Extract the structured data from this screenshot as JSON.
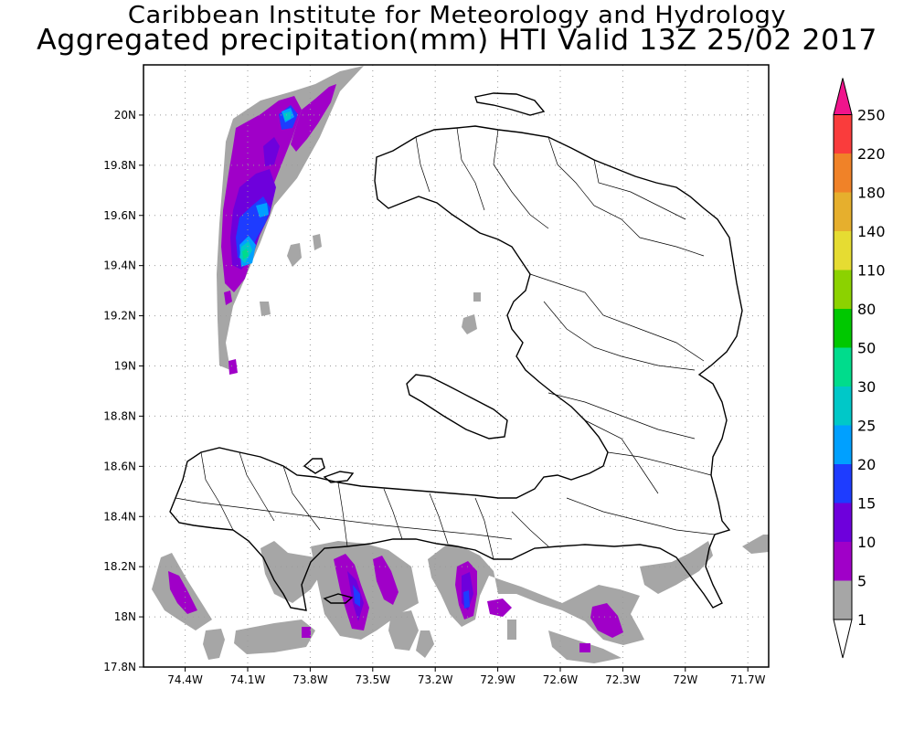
{
  "header": {
    "institute": "Caribbean Institute for Meteorology and Hydrology",
    "product": "Aggregated precipitation(mm) HTI Valid 13Z 25/02 2017"
  },
  "map": {
    "lon_range": [
      -74.6,
      -71.6
    ],
    "lat_range": [
      17.8,
      20.2
    ],
    "gridlines": "dotted",
    "x_ticks": [
      {
        "value": -74.4,
        "label": "74.4W"
      },
      {
        "value": -74.1,
        "label": "74.1W"
      },
      {
        "value": -73.8,
        "label": "73.8W"
      },
      {
        "value": -73.5,
        "label": "73.5W"
      },
      {
        "value": -73.2,
        "label": "73.2W"
      },
      {
        "value": -72.9,
        "label": "72.9W"
      },
      {
        "value": -72.6,
        "label": "72.6W"
      },
      {
        "value": -72.3,
        "label": "72.3W"
      },
      {
        "value": -72.0,
        "label": "72W"
      },
      {
        "value": -71.7,
        "label": "71.7W"
      }
    ],
    "y_ticks": [
      {
        "value": 17.8,
        "label": "17.8N"
      },
      {
        "value": 18.0,
        "label": "18N"
      },
      {
        "value": 18.2,
        "label": "18.2N"
      },
      {
        "value": 18.4,
        "label": "18.4N"
      },
      {
        "value": 18.6,
        "label": "18.6N"
      },
      {
        "value": 18.8,
        "label": "18.8N"
      },
      {
        "value": 19.0,
        "label": "19N"
      },
      {
        "value": 19.2,
        "label": "19.2N"
      },
      {
        "value": 19.4,
        "label": "19.4N"
      },
      {
        "value": 19.6,
        "label": "19.6N"
      },
      {
        "value": 19.8,
        "label": "19.8N"
      },
      {
        "value": 20.0,
        "label": "20N"
      }
    ]
  },
  "legend": {
    "classes": [
      {
        "label": "1",
        "color": "#ffffff"
      },
      {
        "label": "5",
        "color": "#a6a6a6"
      },
      {
        "label": "10",
        "color": "#a000c8"
      },
      {
        "label": "15",
        "color": "#6e00dc"
      },
      {
        "label": "20",
        "color": "#1e3cff"
      },
      {
        "label": "25",
        "color": "#00a0ff"
      },
      {
        "label": "30",
        "color": "#00c8c8"
      },
      {
        "label": "50",
        "color": "#00dc8c"
      },
      {
        "label": "80",
        "color": "#00c800"
      },
      {
        "label": "110",
        "color": "#8cd200"
      },
      {
        "label": "140",
        "color": "#e6dc32"
      },
      {
        "label": "180",
        "color": "#e6af2d"
      },
      {
        "label": "220",
        "color": "#f08228"
      },
      {
        "label": "250",
        "color": "#fa3c3c"
      }
    ],
    "top_color": "#f0148c"
  }
}
